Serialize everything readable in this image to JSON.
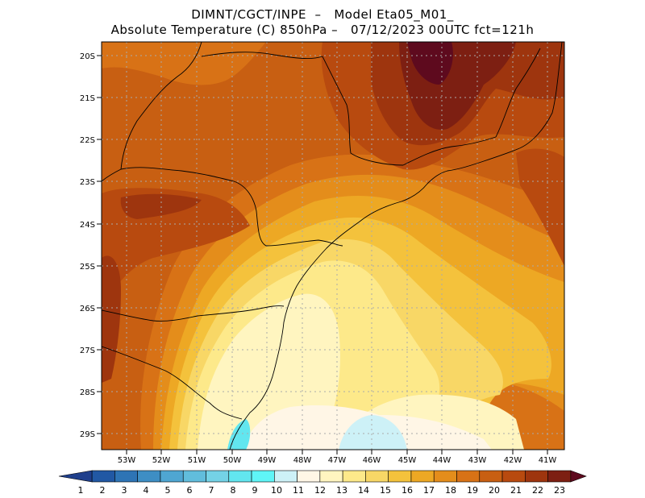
{
  "title": {
    "line1": "DIMNT/CGCT/INPE  –   Model Eta05_M01_",
    "line2": "Absolute Temperature (C) 850hPa –   07/12/2023 00UTC fct=121h"
  },
  "map": {
    "lat_labels": [
      "20S",
      "21S",
      "22S",
      "23S",
      "24S",
      "25S",
      "26S",
      "27S",
      "28S",
      "29S"
    ],
    "lon_labels": [
      "53W",
      "52W",
      "51W",
      "50W",
      "49W",
      "48W",
      "47W",
      "46W",
      "45W",
      "44W",
      "43W",
      "42W",
      "41W"
    ]
  },
  "colorbar": {
    "labels": [
      "1",
      "2",
      "3",
      "4",
      "5",
      "6",
      "7",
      "8",
      "9",
      "10",
      "11",
      "12",
      "13",
      "14",
      "15",
      "16",
      "17",
      "18",
      "19",
      "20",
      "21",
      "22",
      "23"
    ],
    "colors": [
      "#1f3f8c",
      "#2158a4",
      "#2e74b5",
      "#3e8ec4",
      "#4fa6d2",
      "#61bddc",
      "#74d2e6",
      "#62e6ef",
      "#5ff5f7",
      "#cdf1f7",
      "#fff6e6",
      "#fff5c0",
      "#fde98a",
      "#f8d766",
      "#f4c23c",
      "#eda824",
      "#e48d1b",
      "#d87216",
      "#c85f12",
      "#b84a0f",
      "#9e350e",
      "#7d1f12",
      "#5e0a1e"
    ]
  }
}
